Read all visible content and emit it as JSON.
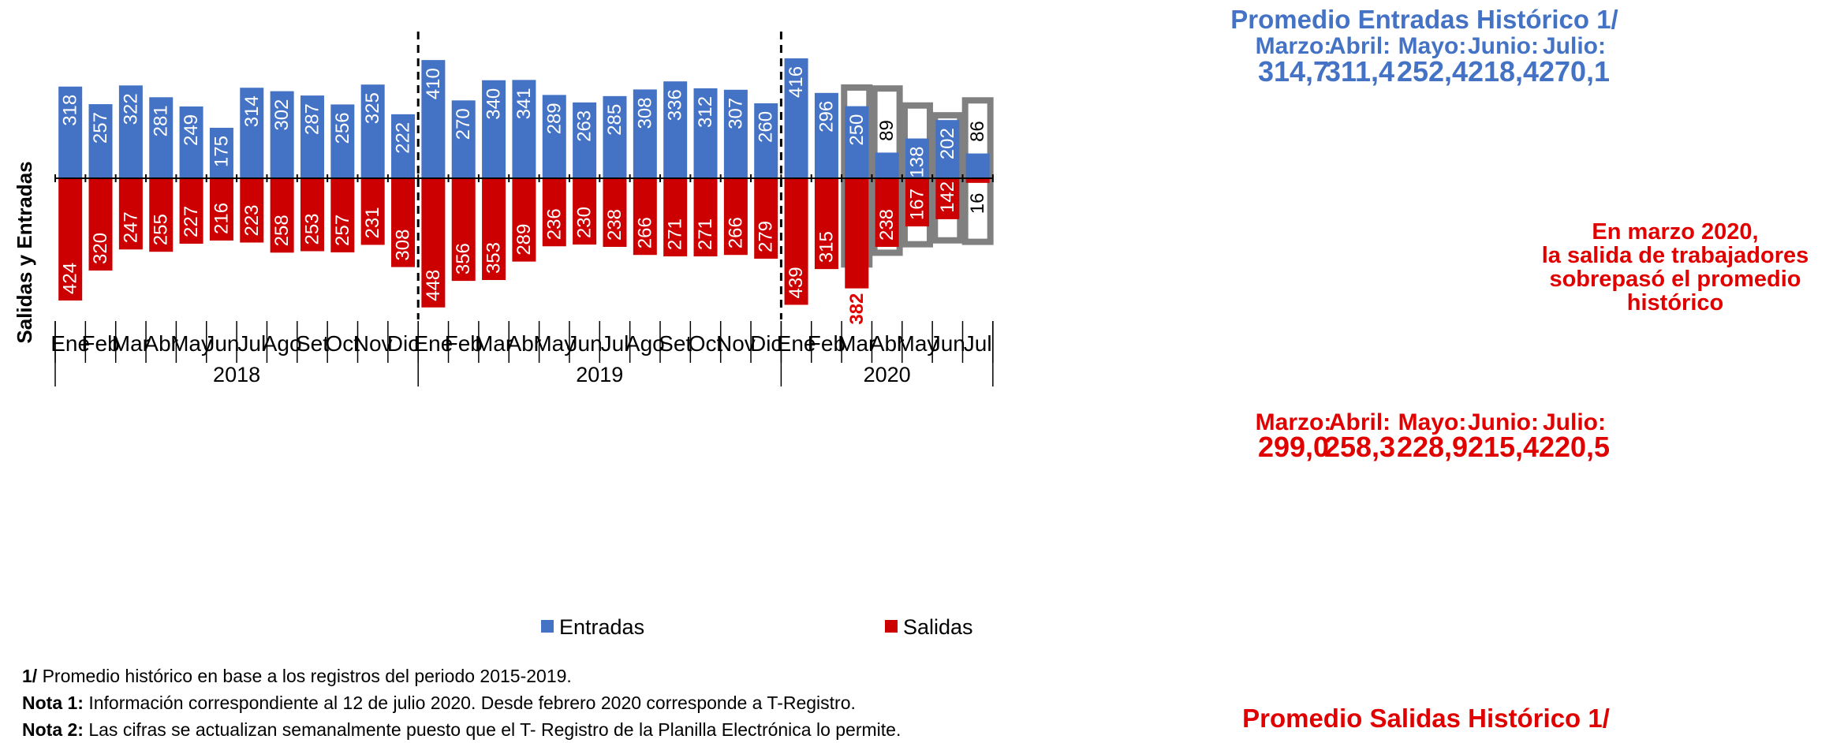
{
  "chart_data": {
    "type": "bar",
    "title": "",
    "ylabel": "Salidas  y  Entradas",
    "xlabel": "",
    "ylim": [
      -460,
      420
    ],
    "grid": false,
    "legend": "bottom",
    "years": [
      {
        "label": "2018",
        "months": 12
      },
      {
        "label": "2019",
        "months": 12
      },
      {
        "label": "2020",
        "months": 7
      }
    ],
    "categories": [
      "Ene",
      "Feb",
      "Mar",
      "Abr",
      "May",
      "Jun",
      "Jul",
      "Ago",
      "Set",
      "Oct",
      "Nov",
      "Dic",
      "Ene",
      "Feb",
      "Mar",
      "Abr",
      "May",
      "Jun",
      "Jul",
      "Ago",
      "Set",
      "Oct",
      "Nov",
      "Dic",
      "Ene",
      "Feb",
      "Mar",
      "Abr",
      "May",
      "Jun",
      "Jul"
    ],
    "series": [
      {
        "name": "Entradas",
        "color": "#4472C4",
        "values": [
          318,
          257,
          322,
          281,
          249,
          175,
          314,
          302,
          287,
          256,
          325,
          222,
          410,
          270,
          340,
          341,
          289,
          263,
          285,
          308,
          336,
          312,
          307,
          260,
          416,
          296,
          250,
          89,
          138,
          202,
          86
        ]
      },
      {
        "name": "Salidas",
        "color": "#CC0000",
        "values": [
          424,
          320,
          247,
          255,
          227,
          216,
          223,
          258,
          253,
          257,
          231,
          308,
          448,
          356,
          353,
          289,
          236,
          230,
          238,
          266,
          271,
          271,
          266,
          279,
          439,
          315,
          382,
          238,
          167,
          142,
          16
        ]
      }
    ],
    "historical_average": {
      "months": [
        "Marzo:",
        "Abril:",
        "Mayo:",
        "Junio:",
        "Julio:"
      ],
      "entradas": {
        "title": "Promedio Entradas Histórico 1/",
        "values": [
          "314,7",
          "311,4",
          "252,4",
          "218,4",
          "270,1"
        ],
        "numeric": [
          314.7,
          311.4,
          252.4,
          218.4,
          270.1
        ]
      },
      "salidas": {
        "title": "Promedio Salidas Histórico 1/",
        "values": [
          "299,0",
          "258,3",
          "228,9",
          "215,4",
          "220,5"
        ],
        "numeric": [
          299.0,
          258.3,
          228.9,
          215.4,
          220.5
        ]
      }
    },
    "annotation": [
      "En marzo 2020,",
      "la salida de trabajadores",
      "sobrepasó el promedio",
      "histórico"
    ],
    "colors": {
      "entradas": "#4472C4",
      "salidas": "#CC0000",
      "highlight": "#808080",
      "text_red": "#E00000"
    }
  },
  "footnotes": {
    "note_1": {
      "label": "1/",
      "text": " Promedio histórico en base a los registros del periodo 2015-2019."
    },
    "note_2": {
      "label": "Nota 1:",
      "text": " Información correspondiente al 12 de julio 2020. Desde febrero 2020 corresponde a T-Registro."
    },
    "note_3": {
      "label": "Nota 2:",
      "text": " Las cifras se actualizan semanalmente puesto que el T- Registro de la Planilla Electrónica lo permite."
    }
  }
}
